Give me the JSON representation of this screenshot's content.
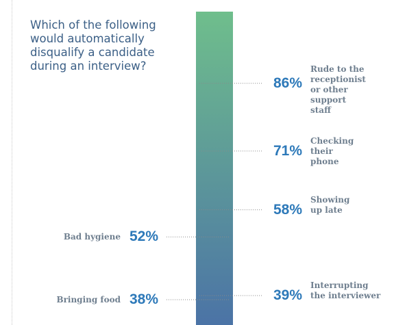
{
  "chart_data": {
    "type": "bar",
    "title": "Which of the following would automatically disqualify a candidate during an interview?",
    "ylim": [
      0,
      100
    ],
    "grid": false,
    "colors": {
      "gradient_top": "#6fbe8c",
      "gradient_bottom": "#4b73a6",
      "value_text": "#2d79b9",
      "label_text": "#6f7f8f",
      "title_text": "#3b5f86"
    },
    "items": [
      {
        "label": "Rude to the receptionist or other support staff",
        "value": 86,
        "value_label": "86%",
        "side": "right"
      },
      {
        "label": "Checking their phone",
        "value": 71,
        "value_label": "71%",
        "side": "right"
      },
      {
        "label": "Showing up late",
        "value": 58,
        "value_label": "58%",
        "side": "right"
      },
      {
        "label": "Bad hygiene",
        "value": 52,
        "value_label": "52%",
        "side": "left"
      },
      {
        "label": "Interrupting the interviewer",
        "value": 39,
        "value_label": "39%",
        "side": "right"
      },
      {
        "label": "Bringing food",
        "value": 38,
        "value_label": "38%",
        "side": "left"
      }
    ]
  }
}
